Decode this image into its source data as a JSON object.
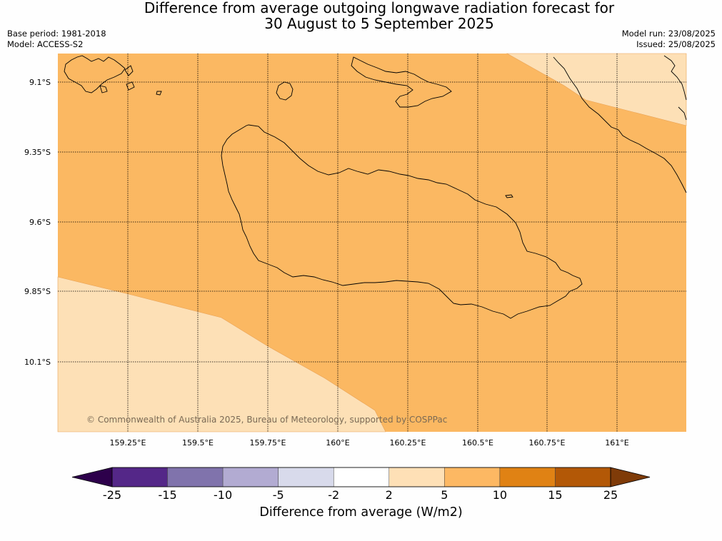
{
  "title": {
    "line1": "Difference from average outgoing longwave radiation forecast for",
    "line2": "30 August to 5 September 2025"
  },
  "meta": {
    "base_period": "Base period: 1981-2018",
    "model": "Model: ACCESS-S2",
    "model_run": "Model run: 23/08/2025",
    "issued": "Issued: 25/08/2025"
  },
  "map": {
    "lat_labels": [
      "9.1°S",
      "9.35°S",
      "9.6°S",
      "9.85°S",
      "10.1°S"
    ],
    "lon_labels": [
      "159.25°E",
      "159.5°E",
      "159.75°E",
      "160°E",
      "160.25°E",
      "160.5°E",
      "160.75°E",
      "161°E"
    ],
    "copyright": "© Commonwealth of Australia 2025, Bureau of Meteorology, supported by COSPPac",
    "region_colors": {
      "main": "#fbb862",
      "light": "#fde0b6"
    },
    "region_values": {
      "main": "5 to 10",
      "light": "2 to 5"
    }
  },
  "colorbar": {
    "label": "Difference from average (W/m2)",
    "ticks": [
      "-25",
      "-15",
      "-10",
      "-5",
      "-2",
      "2",
      "5",
      "10",
      "15",
      "25"
    ],
    "colors": [
      "#2d004b",
      "#542788",
      "#8073ac",
      "#b2abd2",
      "#d8daeb",
      "#ffffff",
      "#fee0b6",
      "#fdb863",
      "#e08214",
      "#b35806",
      "#7f3b08"
    ]
  }
}
